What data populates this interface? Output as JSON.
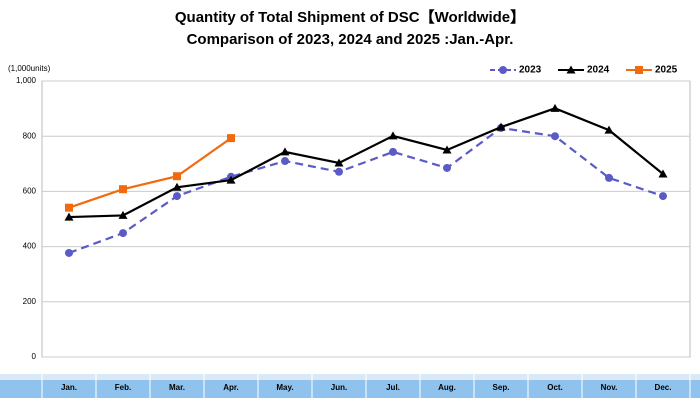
{
  "chart_data": {
    "type": "line",
    "title": "Quantity of Total Shipment of DSC【Worldwide】",
    "subtitle": "Comparison of 2023, 2024 and 2025 :Jan.-Apr.",
    "y_label": "(1,000units)",
    "categories": [
      "Jan.",
      "Feb.",
      "Mar.",
      "Apr.",
      "May.",
      "Jun.",
      "Jul.",
      "Aug.",
      "Sep.",
      "Oct.",
      "Nov.",
      "Dec."
    ],
    "series": [
      {
        "name": "2023",
        "color": "#5b5bc8",
        "dashed": true,
        "marker": "circle",
        "values": [
          377,
          449,
          583,
          653,
          710,
          671,
          743,
          685,
          830,
          800,
          649,
          583
        ]
      },
      {
        "name": "2024",
        "color": "#000000",
        "dashed": false,
        "marker": "triangle",
        "values": [
          507,
          513,
          615,
          641,
          743,
          703,
          801,
          750,
          833,
          901,
          822,
          663
        ]
      },
      {
        "name": "2025",
        "color": "#f26a10",
        "dashed": false,
        "marker": "square",
        "values": [
          541,
          608,
          655,
          793,
          null,
          null,
          null,
          null,
          null,
          null,
          null,
          null
        ]
      }
    ],
    "ylim": [
      0,
      1000
    ],
    "yticks": [
      0,
      200,
      400,
      600,
      800,
      {
        "value": 1000,
        "label": "1,000"
      }
    ],
    "grid": true,
    "legend": "top-right"
  }
}
